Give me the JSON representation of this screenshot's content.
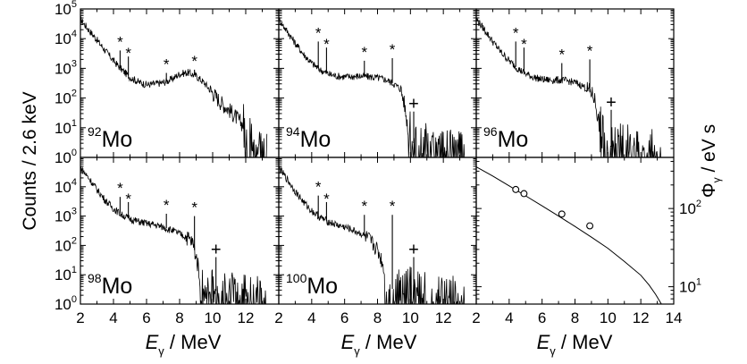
{
  "figure": {
    "ylabel_left": "Counts / 2.6 keV",
    "ylabel_right_symbol": "Φ",
    "ylabel_right_subscript": "γ",
    "ylabel_right_unit": " / eV s",
    "xlabel_symbol": "E",
    "xlabel_subscript": "γ",
    "xlabel_unit": " / MeV"
  },
  "chart_data": [
    {
      "type": "line",
      "panel": "92Mo",
      "isotope_mass": "92",
      "isotope_element": "Mo",
      "xlim": [
        2,
        14
      ],
      "ylim": [
        1,
        100000
      ],
      "yscale": "log",
      "x_ticks": [
        "2",
        "4",
        "6",
        "8",
        "10",
        "12"
      ],
      "y_ticks": [
        {
          "base": "10",
          "exp": "0"
        },
        {
          "base": "10",
          "exp": "1"
        },
        {
          "base": "10",
          "exp": "2"
        },
        {
          "base": "10",
          "exp": "3"
        },
        {
          "base": "10",
          "exp": "4"
        },
        {
          "base": "10",
          "exp": "5"
        }
      ],
      "spectrum": {
        "x": [
          2.0,
          2.5,
          3.0,
          3.5,
          4.0,
          4.5,
          5.0,
          5.5,
          6.0,
          6.5,
          7.0,
          7.5,
          8.0,
          8.5,
          9.0,
          9.5,
          10.0,
          10.5,
          11.0,
          11.5,
          12.0,
          12.5,
          13.0,
          13.3
        ],
        "y": [
          45000,
          20000,
          9000,
          4000,
          1800,
          900,
          500,
          350,
          280,
          300,
          330,
          420,
          650,
          720,
          560,
          320,
          150,
          70,
          40,
          20,
          10,
          5,
          2,
          1
        ]
      },
      "annotations": [
        {
          "label": "*",
          "x": 4.4
        },
        {
          "label": "*",
          "x": 4.9
        },
        {
          "label": "*",
          "x": 7.2
        },
        {
          "label": "*",
          "x": 8.9
        }
      ],
      "lines": [
        {
          "x": 4.4,
          "y": 4000
        },
        {
          "x": 4.9,
          "y": 2500
        },
        {
          "x": 7.2,
          "y": 700
        },
        {
          "x": 8.9,
          "y": 900
        }
      ]
    },
    {
      "type": "line",
      "panel": "94Mo",
      "isotope_mass": "94",
      "isotope_element": "Mo",
      "xlim": [
        2,
        14
      ],
      "ylim": [
        1,
        100000
      ],
      "yscale": "log",
      "x_ticks": [],
      "y_ticks": [],
      "spectrum": {
        "x": [
          2.0,
          2.5,
          3.0,
          3.5,
          4.0,
          4.5,
          5.0,
          5.5,
          6.0,
          6.5,
          7.0,
          7.5,
          8.0,
          8.5,
          9.0,
          9.4,
          9.6,
          9.8,
          10.0,
          10.5,
          11.0,
          11.5,
          12.0,
          12.5,
          13.0,
          13.3
        ],
        "y": [
          45000,
          18000,
          7000,
          3000,
          1500,
          900,
          650,
          550,
          520,
          530,
          550,
          520,
          480,
          420,
          300,
          200,
          80,
          15,
          4,
          2,
          2,
          1.5,
          1.5,
          1.2,
          1,
          1
        ]
      },
      "annotations": [
        {
          "label": "*",
          "x": 4.4
        },
        {
          "label": "*",
          "x": 4.9
        },
        {
          "label": "*",
          "x": 7.2
        },
        {
          "label": "*",
          "x": 8.9
        },
        {
          "label": "+",
          "x": 10.2
        }
      ],
      "lines": [
        {
          "x": 4.4,
          "y": 8000
        },
        {
          "x": 4.9,
          "y": 5000
        },
        {
          "x": 7.2,
          "y": 1800
        },
        {
          "x": 8.9,
          "y": 2200
        },
        {
          "x": 10.2,
          "y": 35
        }
      ]
    },
    {
      "type": "line",
      "panel": "96Mo",
      "isotope_mass": "96",
      "isotope_element": "Mo",
      "xlim": [
        2,
        14
      ],
      "ylim": [
        1,
        100000
      ],
      "yscale": "log",
      "x_ticks": [],
      "y_ticks": [],
      "spectrum": {
        "x": [
          2.0,
          2.5,
          3.0,
          3.5,
          4.0,
          4.5,
          5.0,
          5.5,
          6.0,
          6.5,
          7.0,
          7.5,
          8.0,
          8.5,
          9.0,
          9.2,
          9.4,
          9.6,
          10.0,
          10.5,
          11.0,
          11.5,
          12.0,
          12.5,
          13.0,
          13.3
        ],
        "y": [
          45000,
          20000,
          8000,
          3500,
          1800,
          1000,
          650,
          500,
          420,
          400,
          400,
          380,
          330,
          250,
          150,
          90,
          20,
          5,
          2.5,
          2,
          1.8,
          1.5,
          1.4,
          1.2,
          1,
          1
        ]
      },
      "annotations": [
        {
          "label": "*",
          "x": 4.4
        },
        {
          "label": "*",
          "x": 4.9
        },
        {
          "label": "*",
          "x": 7.2
        },
        {
          "label": "*",
          "x": 8.9
        },
        {
          "label": "+",
          "x": 10.2
        }
      ],
      "lines": [
        {
          "x": 4.4,
          "y": 8000
        },
        {
          "x": 4.9,
          "y": 5000
        },
        {
          "x": 7.2,
          "y": 1500
        },
        {
          "x": 8.9,
          "y": 2000
        },
        {
          "x": 10.2,
          "y": 40
        }
      ]
    },
    {
      "type": "line",
      "panel": "98Mo",
      "isotope_mass": "98",
      "isotope_element": "Mo",
      "xlim": [
        2,
        14
      ],
      "ylim": [
        1,
        100000
      ],
      "yscale": "log",
      "x_ticks": [
        "2",
        "4",
        "6",
        "8",
        "10",
        "12"
      ],
      "y_ticks": [
        {
          "base": "10",
          "exp": "0"
        },
        {
          "base": "10",
          "exp": "1"
        },
        {
          "base": "10",
          "exp": "2"
        },
        {
          "base": "10",
          "exp": "3"
        },
        {
          "base": "10",
          "exp": "4"
        }
      ],
      "spectrum": {
        "x": [
          2.0,
          2.5,
          3.0,
          3.5,
          4.0,
          4.5,
          5.0,
          5.5,
          6.0,
          6.5,
          7.0,
          7.5,
          8.0,
          8.5,
          8.8,
          9.0,
          9.2,
          9.5,
          10.0,
          10.5,
          11.0,
          11.5,
          12.0,
          12.5,
          13.0,
          13.3
        ],
        "y": [
          45000,
          20000,
          8000,
          3500,
          1800,
          1100,
          800,
          650,
          560,
          500,
          420,
          330,
          250,
          180,
          120,
          40,
          12,
          5,
          3,
          2.5,
          2,
          1.8,
          1.6,
          1.3,
          1.1,
          1
        ]
      },
      "annotations": [
        {
          "label": "*",
          "x": 4.4
        },
        {
          "label": "*",
          "x": 4.9
        },
        {
          "label": "*",
          "x": 7.2
        },
        {
          "label": "*",
          "x": 8.9
        },
        {
          "label": "+",
          "x": 10.2
        }
      ],
      "lines": [
        {
          "x": 4.4,
          "y": 4500
        },
        {
          "x": 4.9,
          "y": 3000
        },
        {
          "x": 7.2,
          "y": 1200
        },
        {
          "x": 8.9,
          "y": 1000
        },
        {
          "x": 10.2,
          "y": 40
        }
      ]
    },
    {
      "type": "line",
      "panel": "100Mo",
      "isotope_mass": "100",
      "isotope_element": "Mo",
      "xlim": [
        2,
        14
      ],
      "ylim": [
        1,
        100000
      ],
      "yscale": "log",
      "x_ticks": [
        "2",
        "4",
        "6",
        "8",
        "10",
        "12"
      ],
      "y_ticks": [],
      "spectrum": {
        "x": [
          2.0,
          2.5,
          3.0,
          3.5,
          4.0,
          4.5,
          5.0,
          5.5,
          6.0,
          6.5,
          7.0,
          7.5,
          8.0,
          8.3,
          8.5,
          8.7,
          9.0,
          9.5,
          10.0,
          10.5,
          11.0,
          11.5,
          12.0,
          12.5,
          13.0,
          13.3
        ],
        "y": [
          45000,
          18000,
          7000,
          3000,
          1500,
          900,
          650,
          500,
          420,
          330,
          250,
          150,
          70,
          25,
          8,
          4,
          3,
          2.5,
          2.5,
          2,
          1.8,
          1.6,
          1.4,
          1.2,
          1,
          1
        ]
      },
      "annotations": [
        {
          "label": "*",
          "x": 4.4
        },
        {
          "label": "*",
          "x": 4.9
        },
        {
          "label": "*",
          "x": 7.2
        },
        {
          "label": "*",
          "x": 8.9
        },
        {
          "label": "+",
          "x": 10.2
        }
      ],
      "lines": [
        {
          "x": 4.4,
          "y": 5000
        },
        {
          "x": 4.9,
          "y": 3000
        },
        {
          "x": 7.2,
          "y": 1100
        },
        {
          "x": 8.9,
          "y": 1100
        },
        {
          "x": 10.2,
          "y": 40
        }
      ]
    },
    {
      "type": "scatter",
      "panel": "flux",
      "xlim": [
        2,
        14
      ],
      "ylim": [
        6,
        450
      ],
      "yscale": "log",
      "x_ticks": [
        "2",
        "4",
        "6",
        "8",
        "10",
        "12",
        "14"
      ],
      "y_ticks_right": [
        {
          "base": "10",
          "exp": "1"
        },
        {
          "base": "10",
          "exp": "2"
        }
      ],
      "curve": {
        "x": [
          2.0,
          3.0,
          4.0,
          5.0,
          6.0,
          7.0,
          8.0,
          9.0,
          10.0,
          11.0,
          12.0,
          12.5,
          12.9,
          13.1,
          13.25
        ],
        "y": [
          340,
          260,
          195,
          145,
          108,
          80,
          59,
          43,
          31,
          21,
          14,
          10.5,
          8.0,
          6.8,
          6.0
        ]
      },
      "points": {
        "x": [
          4.4,
          4.9,
          7.2,
          8.9
        ],
        "y": [
          175,
          155,
          85,
          60
        ]
      }
    }
  ]
}
